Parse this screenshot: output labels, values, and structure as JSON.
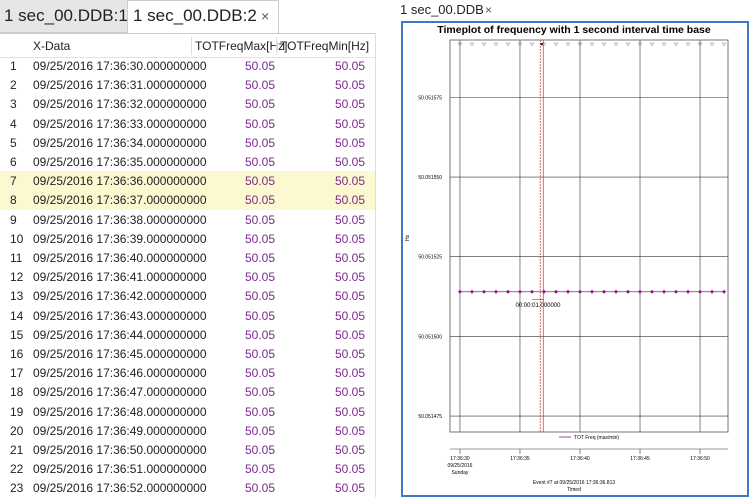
{
  "tabs": {
    "left": [
      "1 sec_00.DDB:1",
      "1 sec_00.DDB:2"
    ],
    "right": "1 sec_00.DDB",
    "close": "×"
  },
  "table": {
    "columns": [
      "X-Data",
      "TOTFreqMax[Hz]",
      "TOTFreqMin[Hz]"
    ],
    "highlighted_rows": [
      6,
      7
    ],
    "rows": [
      [
        1,
        "09/25/2016 17:36:30.000000000",
        50.05,
        50.05
      ],
      [
        2,
        "09/25/2016 17:36:31.000000000",
        50.05,
        50.05
      ],
      [
        3,
        "09/25/2016 17:36:32.000000000",
        50.05,
        50.05
      ],
      [
        4,
        "09/25/2016 17:36:33.000000000",
        50.05,
        50.05
      ],
      [
        5,
        "09/25/2016 17:36:34.000000000",
        50.05,
        50.05
      ],
      [
        6,
        "09/25/2016 17:36:35.000000000",
        50.05,
        50.05
      ],
      [
        7,
        "09/25/2016 17:36:36.000000000",
        50.05,
        50.05
      ],
      [
        8,
        "09/25/2016 17:36:37.000000000",
        50.05,
        50.05
      ],
      [
        9,
        "09/25/2016 17:36:38.000000000",
        50.05,
        50.05
      ],
      [
        10,
        "09/25/2016 17:36:39.000000000",
        50.05,
        50.05
      ],
      [
        11,
        "09/25/2016 17:36:40.000000000",
        50.05,
        50.05
      ],
      [
        12,
        "09/25/2016 17:36:41.000000000",
        50.05,
        50.05
      ],
      [
        13,
        "09/25/2016 17:36:42.000000000",
        50.05,
        50.05
      ],
      [
        14,
        "09/25/2016 17:36:43.000000000",
        50.05,
        50.05
      ],
      [
        15,
        "09/25/2016 17:36:44.000000000",
        50.05,
        50.05
      ],
      [
        16,
        "09/25/2016 17:36:45.000000000",
        50.05,
        50.05
      ],
      [
        17,
        "09/25/2016 17:36:46.000000000",
        50.05,
        50.05
      ],
      [
        18,
        "09/25/2016 17:36:47.000000000",
        50.05,
        50.05
      ],
      [
        19,
        "09/25/2016 17:36:48.000000000",
        50.05,
        50.05
      ],
      [
        20,
        "09/25/2016 17:36:49.000000000",
        50.05,
        50.05
      ],
      [
        21,
        "09/25/2016 17:36:50.000000000",
        50.05,
        50.05
      ],
      [
        22,
        "09/25/2016 17:36:51.000000000",
        50.05,
        50.05
      ],
      [
        23,
        "09/25/2016 17:36:52.000000000",
        50.05,
        50.05
      ]
    ]
  },
  "plot": {
    "title": "Timeplot of frequency with 1 second interval time base",
    "ylabel": "Hz",
    "ylim": [
      50.05147,
      50.051593
    ],
    "yticks": [
      {
        "value": 50.051575,
        "label": "50.051575"
      },
      {
        "value": 50.05155,
        "label": "50.051550"
      },
      {
        "value": 50.051525,
        "label": "50.051525"
      },
      {
        "value": 50.0515,
        "label": "50.051500"
      },
      {
        "value": 50.051475,
        "label": "50.051475"
      }
    ],
    "xlim": [
      -0.83,
      22.33
    ],
    "xticks": [
      {
        "value": 0,
        "label": "17:36:30"
      },
      {
        "value": 5,
        "label": "17:36:35"
      },
      {
        "value": 10,
        "label": "17:36:40"
      },
      {
        "value": 15,
        "label": "17:36:45"
      },
      {
        "value": 20,
        "label": "17:36:50"
      }
    ],
    "first_tick_sublabels": [
      "09/25/2016",
      "Sunday"
    ],
    "x": [
      0,
      1,
      2,
      3,
      4,
      5,
      6,
      7,
      8,
      9,
      10,
      11,
      12,
      13,
      14,
      15,
      16,
      17,
      18,
      19,
      20,
      21,
      22
    ],
    "series": {
      "name": "TOT Freq (max/min)",
      "color": "#8b1a8b",
      "values": [
        50.051514,
        50.051514,
        50.051514,
        50.051514,
        50.051514,
        50.051514,
        50.051514,
        50.051514,
        50.051514,
        50.051514,
        50.051514,
        50.051514,
        50.051514,
        50.051514,
        50.051514,
        50.051514,
        50.051514,
        50.051514,
        50.051514,
        50.051514,
        50.051514,
        50.051514,
        50.051514
      ]
    },
    "cursor": 6.813,
    "annotation": "00:00:01.000000",
    "footer": [
      "Event #7 at 09/25/2016 17:36:36.813",
      "Timed"
    ]
  }
}
